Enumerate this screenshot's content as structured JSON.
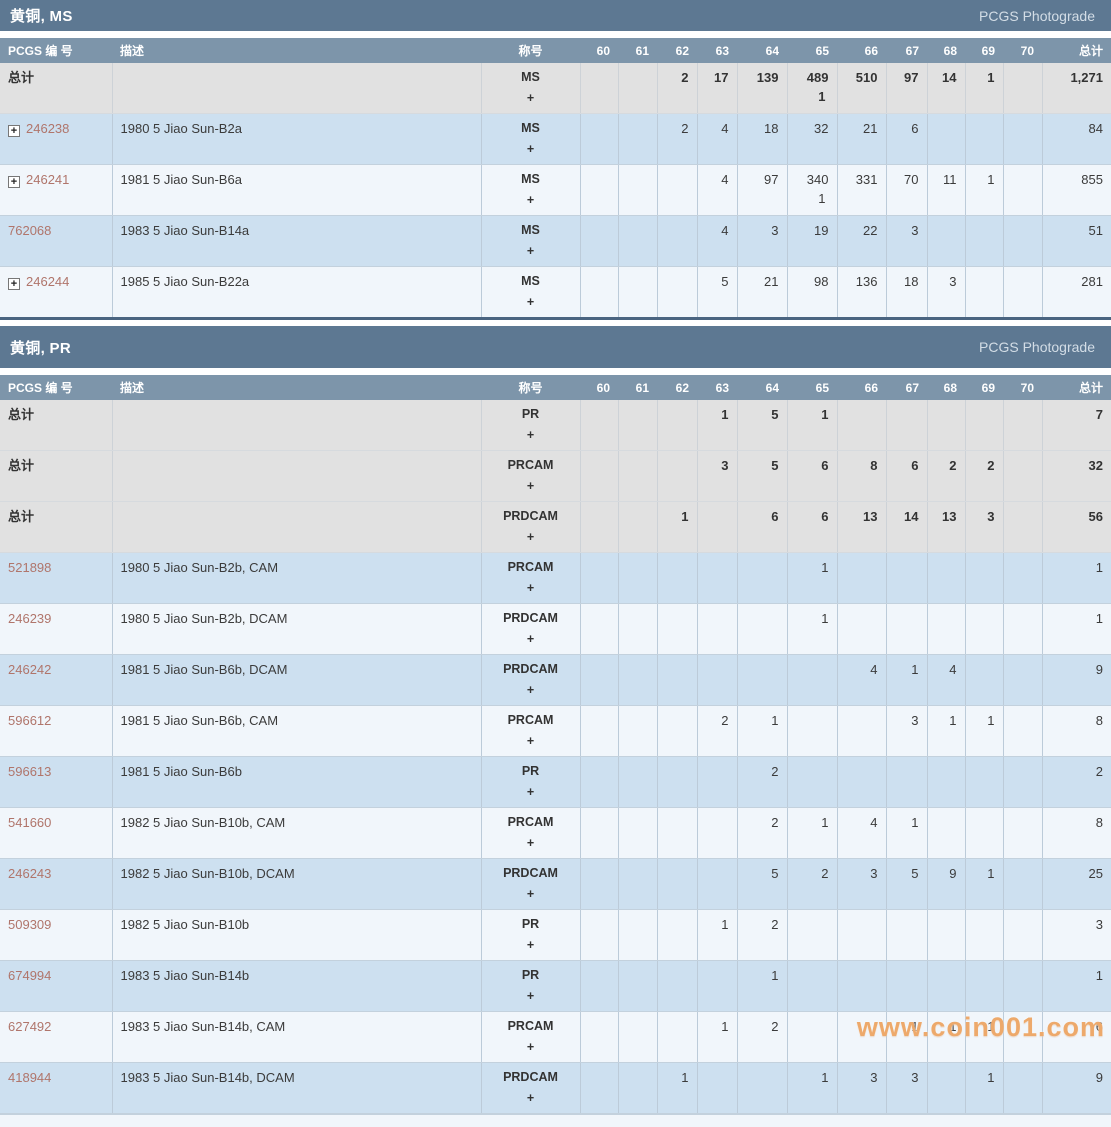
{
  "columns": [
    "PCGS 编 号",
    "描述",
    "称号",
    "60",
    "61",
    "62",
    "63",
    "64",
    "65",
    "66",
    "67",
    "68",
    "69",
    "70",
    "总计"
  ],
  "icons": {
    "expand_glyph": "+"
  },
  "watermark": "www.coin001.com",
  "colors": {
    "section_bar": "#5d7892",
    "column_header": "#7d95aa",
    "row_blue": "#cde0f0",
    "row_white": "#f1f6fb",
    "row_gray": "#e1e1e1",
    "pcgs_link": "#b0756b",
    "table_border": "#4a6480",
    "watermark": "#eda96b"
  },
  "sections": [
    {
      "title": "黄铜, MS",
      "photograde": "PCGS Photograde",
      "rows": [
        {
          "type": "total",
          "label": "总计",
          "desig": [
            "MS",
            "+"
          ],
          "v": [
            "",
            "",
            "2",
            "17",
            "139",
            "489|1",
            "510",
            "97",
            "14",
            "1",
            ""
          ],
          "total": "1,271"
        },
        {
          "type": "data",
          "num": "246238",
          "expand": true,
          "desc": "1980 5 Jiao Sun-B2a",
          "desig": [
            "MS",
            "+"
          ],
          "v": [
            "",
            "",
            "2",
            "4",
            "18",
            "32",
            "21",
            "6",
            "",
            "",
            ""
          ],
          "total": "84"
        },
        {
          "type": "data",
          "num": "246241",
          "expand": true,
          "desc": "1981 5 Jiao Sun-B6a",
          "desig": [
            "MS",
            "+"
          ],
          "v": [
            "",
            "",
            "",
            "4",
            "97",
            "340|1",
            "331",
            "70",
            "11",
            "1",
            ""
          ],
          "total": "855"
        },
        {
          "type": "data",
          "num": "762068",
          "expand": false,
          "desc": "1983 5 Jiao Sun-B14a",
          "desig": [
            "MS",
            "+"
          ],
          "v": [
            "",
            "",
            "",
            "4",
            "3",
            "19",
            "22",
            "3",
            "",
            "",
            ""
          ],
          "total": "51"
        },
        {
          "type": "data",
          "num": "246244",
          "expand": true,
          "desc": "1985 5 Jiao Sun-B22a",
          "desig": [
            "MS",
            "+"
          ],
          "v": [
            "",
            "",
            "",
            "5",
            "21",
            "98",
            "136",
            "18",
            "3",
            "",
            ""
          ],
          "total": "281"
        }
      ]
    },
    {
      "title": "黄铜, PR",
      "photograde": "PCGS Photograde",
      "rows": [
        {
          "type": "total",
          "label": "总计",
          "desig": [
            "PR",
            "+"
          ],
          "v": [
            "",
            "",
            "",
            "1",
            "5",
            "1",
            "",
            "",
            "",
            "",
            ""
          ],
          "total": "7"
        },
        {
          "type": "total",
          "label": "总计",
          "desig": [
            "PRCAM",
            "+"
          ],
          "v": [
            "",
            "",
            "",
            "3",
            "5",
            "6",
            "8",
            "6",
            "2",
            "2",
            ""
          ],
          "total": "32"
        },
        {
          "type": "total",
          "label": "总计",
          "desig": [
            "PRDCAM",
            "+"
          ],
          "v": [
            "",
            "",
            "1",
            "",
            "6",
            "6",
            "13",
            "14",
            "13",
            "3",
            ""
          ],
          "total": "56"
        },
        {
          "type": "data",
          "num": "521898",
          "expand": false,
          "desc": "1980 5 Jiao Sun-B2b, CAM",
          "desig": [
            "PRCAM",
            "+"
          ],
          "v": [
            "",
            "",
            "",
            "",
            "",
            "1",
            "",
            "",
            "",
            "",
            ""
          ],
          "total": "1"
        },
        {
          "type": "data",
          "num": "246239",
          "expand": false,
          "desc": "1980 5 Jiao Sun-B2b, DCAM",
          "desig": [
            "PRDCAM",
            "+"
          ],
          "v": [
            "",
            "",
            "",
            "",
            "",
            "1",
            "",
            "",
            "",
            "",
            ""
          ],
          "total": "1"
        },
        {
          "type": "data",
          "num": "246242",
          "expand": false,
          "desc": "1981 5 Jiao Sun-B6b, DCAM",
          "desig": [
            "PRDCAM",
            "+"
          ],
          "v": [
            "",
            "",
            "",
            "",
            "",
            "",
            "4",
            "1",
            "4",
            "",
            ""
          ],
          "total": "9"
        },
        {
          "type": "data",
          "num": "596612",
          "expand": false,
          "desc": "1981 5 Jiao Sun-B6b, CAM",
          "desig": [
            "PRCAM",
            "+"
          ],
          "v": [
            "",
            "",
            "",
            "2",
            "1",
            "",
            "",
            "3",
            "1",
            "1",
            ""
          ],
          "total": "8"
        },
        {
          "type": "data",
          "num": "596613",
          "expand": false,
          "desc": "1981 5 Jiao Sun-B6b",
          "desig": [
            "PR",
            "+"
          ],
          "v": [
            "",
            "",
            "",
            "",
            "2",
            "",
            "",
            "",
            "",
            "",
            ""
          ],
          "total": "2"
        },
        {
          "type": "data",
          "num": "541660",
          "expand": false,
          "desc": "1982 5 Jiao Sun-B10b, CAM",
          "desig": [
            "PRCAM",
            "+"
          ],
          "v": [
            "",
            "",
            "",
            "",
            "2",
            "1",
            "4",
            "1",
            "",
            "",
            ""
          ],
          "total": "8"
        },
        {
          "type": "data",
          "num": "246243",
          "expand": false,
          "desc": "1982 5 Jiao Sun-B10b, DCAM",
          "desig": [
            "PRDCAM",
            "+"
          ],
          "v": [
            "",
            "",
            "",
            "",
            "5",
            "2",
            "3",
            "5",
            "9",
            "1",
            ""
          ],
          "total": "25"
        },
        {
          "type": "data",
          "num": "509309",
          "expand": false,
          "desc": "1982 5 Jiao Sun-B10b",
          "desig": [
            "PR",
            "+"
          ],
          "v": [
            "",
            "",
            "",
            "1",
            "2",
            "",
            "",
            "",
            "",
            "",
            ""
          ],
          "total": "3"
        },
        {
          "type": "data",
          "num": "674994",
          "expand": false,
          "desc": "1983 5 Jiao Sun-B14b",
          "desig": [
            "PR",
            "+"
          ],
          "v": [
            "",
            "",
            "",
            "",
            "1",
            "",
            "",
            "",
            "",
            "",
            ""
          ],
          "total": "1"
        },
        {
          "type": "data",
          "num": "627492",
          "expand": false,
          "desc": "1983 5 Jiao Sun-B14b, CAM",
          "desig": [
            "PRCAM",
            "+"
          ],
          "v": [
            "",
            "",
            "",
            "1",
            "2",
            "",
            "",
            "1",
            "1",
            "1",
            ""
          ],
          "total": "6"
        },
        {
          "type": "data",
          "num": "418944",
          "expand": false,
          "desc": "1983 5 Jiao Sun-B14b, DCAM",
          "desig": [
            "PRDCAM",
            "+"
          ],
          "v": [
            "",
            "",
            "1",
            "",
            "",
            "1",
            "3",
            "3",
            "",
            "1",
            ""
          ],
          "total": "9"
        }
      ]
    }
  ]
}
